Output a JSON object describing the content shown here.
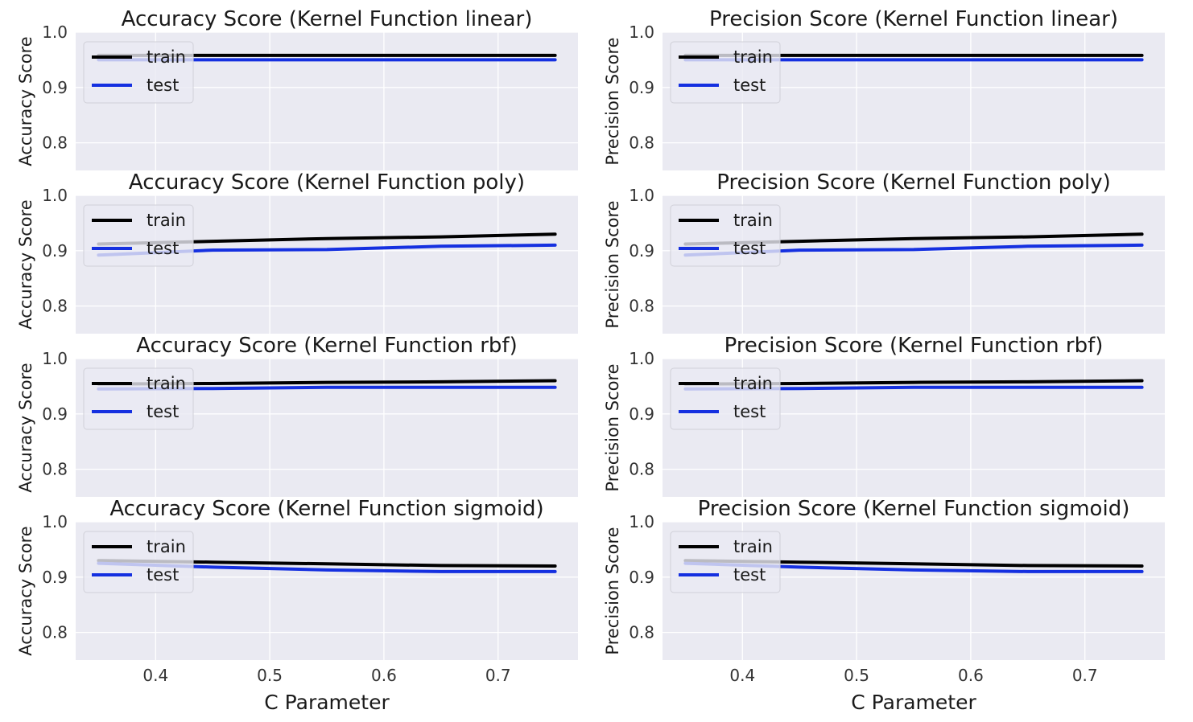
{
  "colors": {
    "plot_bg": "#EAEAF2",
    "grid": "#FFFFFF",
    "train": "#000000",
    "test": "#1530E0",
    "legend_bg": "#EAEAF2",
    "legend_border": "#D0D0D8"
  },
  "chart_data": [
    {
      "type": "line",
      "title": "Accuracy Score (Kernel Function linear)",
      "ylabel": "Accuracy Score",
      "xlabel": "",
      "x": [
        0.35,
        0.45,
        0.55,
        0.65,
        0.75
      ],
      "xlim": [
        0.33,
        0.77
      ],
      "ylim": [
        0.75,
        1.0
      ],
      "xticks": [
        0.4,
        0.5,
        0.6,
        0.7
      ],
      "yticks": [
        0.8,
        0.9,
        1.0
      ],
      "legend": "upper-left",
      "grid": true,
      "show_xticks": false,
      "series": [
        {
          "name": "train",
          "values": [
            0.958,
            0.958,
            0.958,
            0.958,
            0.958
          ]
        },
        {
          "name": "test",
          "values": [
            0.95,
            0.95,
            0.95,
            0.95,
            0.95
          ]
        }
      ]
    },
    {
      "type": "line",
      "title": "Precision Score (Kernel Function linear)",
      "ylabel": "Precision Score",
      "xlabel": "",
      "x": [
        0.35,
        0.45,
        0.55,
        0.65,
        0.75
      ],
      "xlim": [
        0.33,
        0.77
      ],
      "ylim": [
        0.75,
        1.0
      ],
      "xticks": [
        0.4,
        0.5,
        0.6,
        0.7
      ],
      "yticks": [
        0.8,
        0.9,
        1.0
      ],
      "legend": "upper-left",
      "grid": true,
      "show_xticks": false,
      "series": [
        {
          "name": "train",
          "values": [
            0.958,
            0.958,
            0.958,
            0.958,
            0.958
          ]
        },
        {
          "name": "test",
          "values": [
            0.95,
            0.95,
            0.95,
            0.95,
            0.95
          ]
        }
      ]
    },
    {
      "type": "line",
      "title": "Accuracy Score (Kernel Function poly)",
      "ylabel": "Accuracy Score",
      "xlabel": "",
      "x": [
        0.35,
        0.45,
        0.55,
        0.65,
        0.75
      ],
      "xlim": [
        0.33,
        0.77
      ],
      "ylim": [
        0.75,
        1.0
      ],
      "xticks": [
        0.4,
        0.5,
        0.6,
        0.7
      ],
      "yticks": [
        0.8,
        0.9,
        1.0
      ],
      "legend": "upper-left",
      "grid": true,
      "show_xticks": false,
      "series": [
        {
          "name": "train",
          "values": [
            0.912,
            0.917,
            0.922,
            0.925,
            0.93
          ]
        },
        {
          "name": "test",
          "values": [
            0.892,
            0.901,
            0.902,
            0.908,
            0.91
          ]
        }
      ]
    },
    {
      "type": "line",
      "title": "Precision Score (Kernel Function poly)",
      "ylabel": "Precision Score",
      "xlabel": "",
      "x": [
        0.35,
        0.45,
        0.55,
        0.65,
        0.75
      ],
      "xlim": [
        0.33,
        0.77
      ],
      "ylim": [
        0.75,
        1.0
      ],
      "xticks": [
        0.4,
        0.5,
        0.6,
        0.7
      ],
      "yticks": [
        0.8,
        0.9,
        1.0
      ],
      "legend": "upper-left",
      "grid": true,
      "show_xticks": false,
      "series": [
        {
          "name": "train",
          "values": [
            0.912,
            0.917,
            0.922,
            0.925,
            0.93
          ]
        },
        {
          "name": "test",
          "values": [
            0.892,
            0.901,
            0.902,
            0.908,
            0.91
          ]
        }
      ]
    },
    {
      "type": "line",
      "title": "Accuracy Score (Kernel Function rbf)",
      "ylabel": "Accuracy Score",
      "xlabel": "",
      "x": [
        0.35,
        0.45,
        0.55,
        0.65,
        0.75
      ],
      "xlim": [
        0.33,
        0.77
      ],
      "ylim": [
        0.75,
        1.0
      ],
      "xticks": [
        0.4,
        0.5,
        0.6,
        0.7
      ],
      "yticks": [
        0.8,
        0.9,
        1.0
      ],
      "legend": "upper-left",
      "grid": true,
      "show_xticks": false,
      "series": [
        {
          "name": "train",
          "values": [
            0.954,
            0.955,
            0.957,
            0.958,
            0.96
          ]
        },
        {
          "name": "test",
          "values": [
            0.945,
            0.946,
            0.948,
            0.948,
            0.948
          ]
        }
      ]
    },
    {
      "type": "line",
      "title": "Precision Score (Kernel Function rbf)",
      "ylabel": "Precision Score",
      "xlabel": "",
      "x": [
        0.35,
        0.45,
        0.55,
        0.65,
        0.75
      ],
      "xlim": [
        0.33,
        0.77
      ],
      "ylim": [
        0.75,
        1.0
      ],
      "xticks": [
        0.4,
        0.5,
        0.6,
        0.7
      ],
      "yticks": [
        0.8,
        0.9,
        1.0
      ],
      "legend": "upper-left",
      "grid": true,
      "show_xticks": false,
      "series": [
        {
          "name": "train",
          "values": [
            0.954,
            0.955,
            0.957,
            0.958,
            0.96
          ]
        },
        {
          "name": "test",
          "values": [
            0.945,
            0.946,
            0.948,
            0.948,
            0.948
          ]
        }
      ]
    },
    {
      "type": "line",
      "title": "Accuracy Score (Kernel Function sigmoid)",
      "ylabel": "Accuracy Score",
      "xlabel": "C Parameter",
      "x": [
        0.35,
        0.45,
        0.55,
        0.65,
        0.75
      ],
      "xlim": [
        0.33,
        0.77
      ],
      "ylim": [
        0.75,
        1.0
      ],
      "xticks": [
        0.4,
        0.5,
        0.6,
        0.7
      ],
      "yticks": [
        0.8,
        0.9,
        1.0
      ],
      "legend": "upper-left",
      "grid": true,
      "show_xticks": true,
      "series": [
        {
          "name": "train",
          "values": [
            0.93,
            0.927,
            0.924,
            0.921,
            0.92
          ]
        },
        {
          "name": "test",
          "values": [
            0.925,
            0.918,
            0.913,
            0.91,
            0.91
          ]
        }
      ]
    },
    {
      "type": "line",
      "title": "Precision Score (Kernel Function sigmoid)",
      "ylabel": "Precision Score",
      "xlabel": "C Parameter",
      "x": [
        0.35,
        0.45,
        0.55,
        0.65,
        0.75
      ],
      "xlim": [
        0.33,
        0.77
      ],
      "ylim": [
        0.75,
        1.0
      ],
      "xticks": [
        0.4,
        0.5,
        0.6,
        0.7
      ],
      "yticks": [
        0.8,
        0.9,
        1.0
      ],
      "legend": "upper-left",
      "grid": true,
      "show_xticks": true,
      "series": [
        {
          "name": "train",
          "values": [
            0.93,
            0.927,
            0.924,
            0.921,
            0.92
          ]
        },
        {
          "name": "test",
          "values": [
            0.925,
            0.918,
            0.913,
            0.91,
            0.91
          ]
        }
      ]
    }
  ]
}
